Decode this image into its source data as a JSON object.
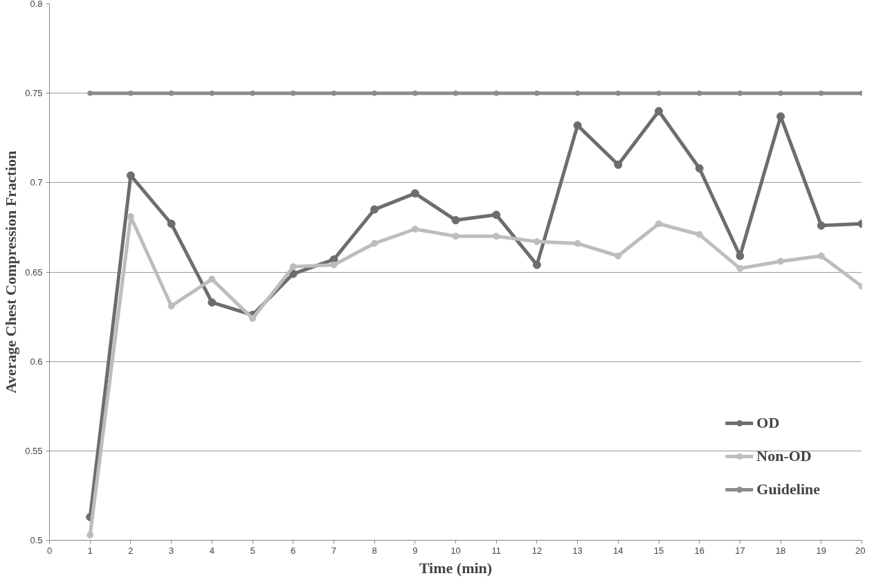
{
  "chart_data": {
    "type": "line",
    "xlabel": "Time (min)",
    "ylabel": "Average Chest Compression Fraction",
    "x": [
      1,
      2,
      3,
      4,
      5,
      6,
      7,
      8,
      9,
      10,
      11,
      12,
      13,
      14,
      15,
      16,
      17,
      18,
      19,
      20
    ],
    "series": [
      {
        "name": "OD",
        "color": "#6d6d6d",
        "values": [
          0.513,
          0.704,
          0.677,
          0.633,
          0.626,
          0.649,
          0.657,
          0.685,
          0.694,
          0.679,
          0.682,
          0.654,
          0.732,
          0.71,
          0.74,
          0.708,
          0.659,
          0.737,
          0.676,
          0.677
        ]
      },
      {
        "name": "Non-OD",
        "color": "#bdbdbd",
        "values": [
          0.503,
          0.681,
          0.631,
          0.646,
          0.624,
          0.653,
          0.654,
          0.666,
          0.674,
          0.67,
          0.67,
          0.667,
          0.666,
          0.659,
          0.677,
          0.671,
          0.652,
          0.656,
          0.659,
          0.642
        ]
      },
      {
        "name": "Guideline",
        "color": "#8c8c8c",
        "values": [
          0.75,
          0.75,
          0.75,
          0.75,
          0.75,
          0.75,
          0.75,
          0.75,
          0.75,
          0.75,
          0.75,
          0.75,
          0.75,
          0.75,
          0.75,
          0.75,
          0.75,
          0.75,
          0.75,
          0.75
        ]
      }
    ],
    "xlim": [
      0,
      20
    ],
    "xticks": [
      0,
      1,
      2,
      3,
      4,
      5,
      6,
      7,
      8,
      9,
      10,
      11,
      12,
      13,
      14,
      15,
      16,
      17,
      18,
      19,
      20
    ],
    "ylim": [
      0.5,
      0.8
    ],
    "yticks": [
      0.5,
      0.55,
      0.6,
      0.65,
      0.7,
      0.75,
      0.8
    ],
    "grid": "y",
    "legend": "bottom right",
    "marker": "circle",
    "line_style": "solid"
  }
}
